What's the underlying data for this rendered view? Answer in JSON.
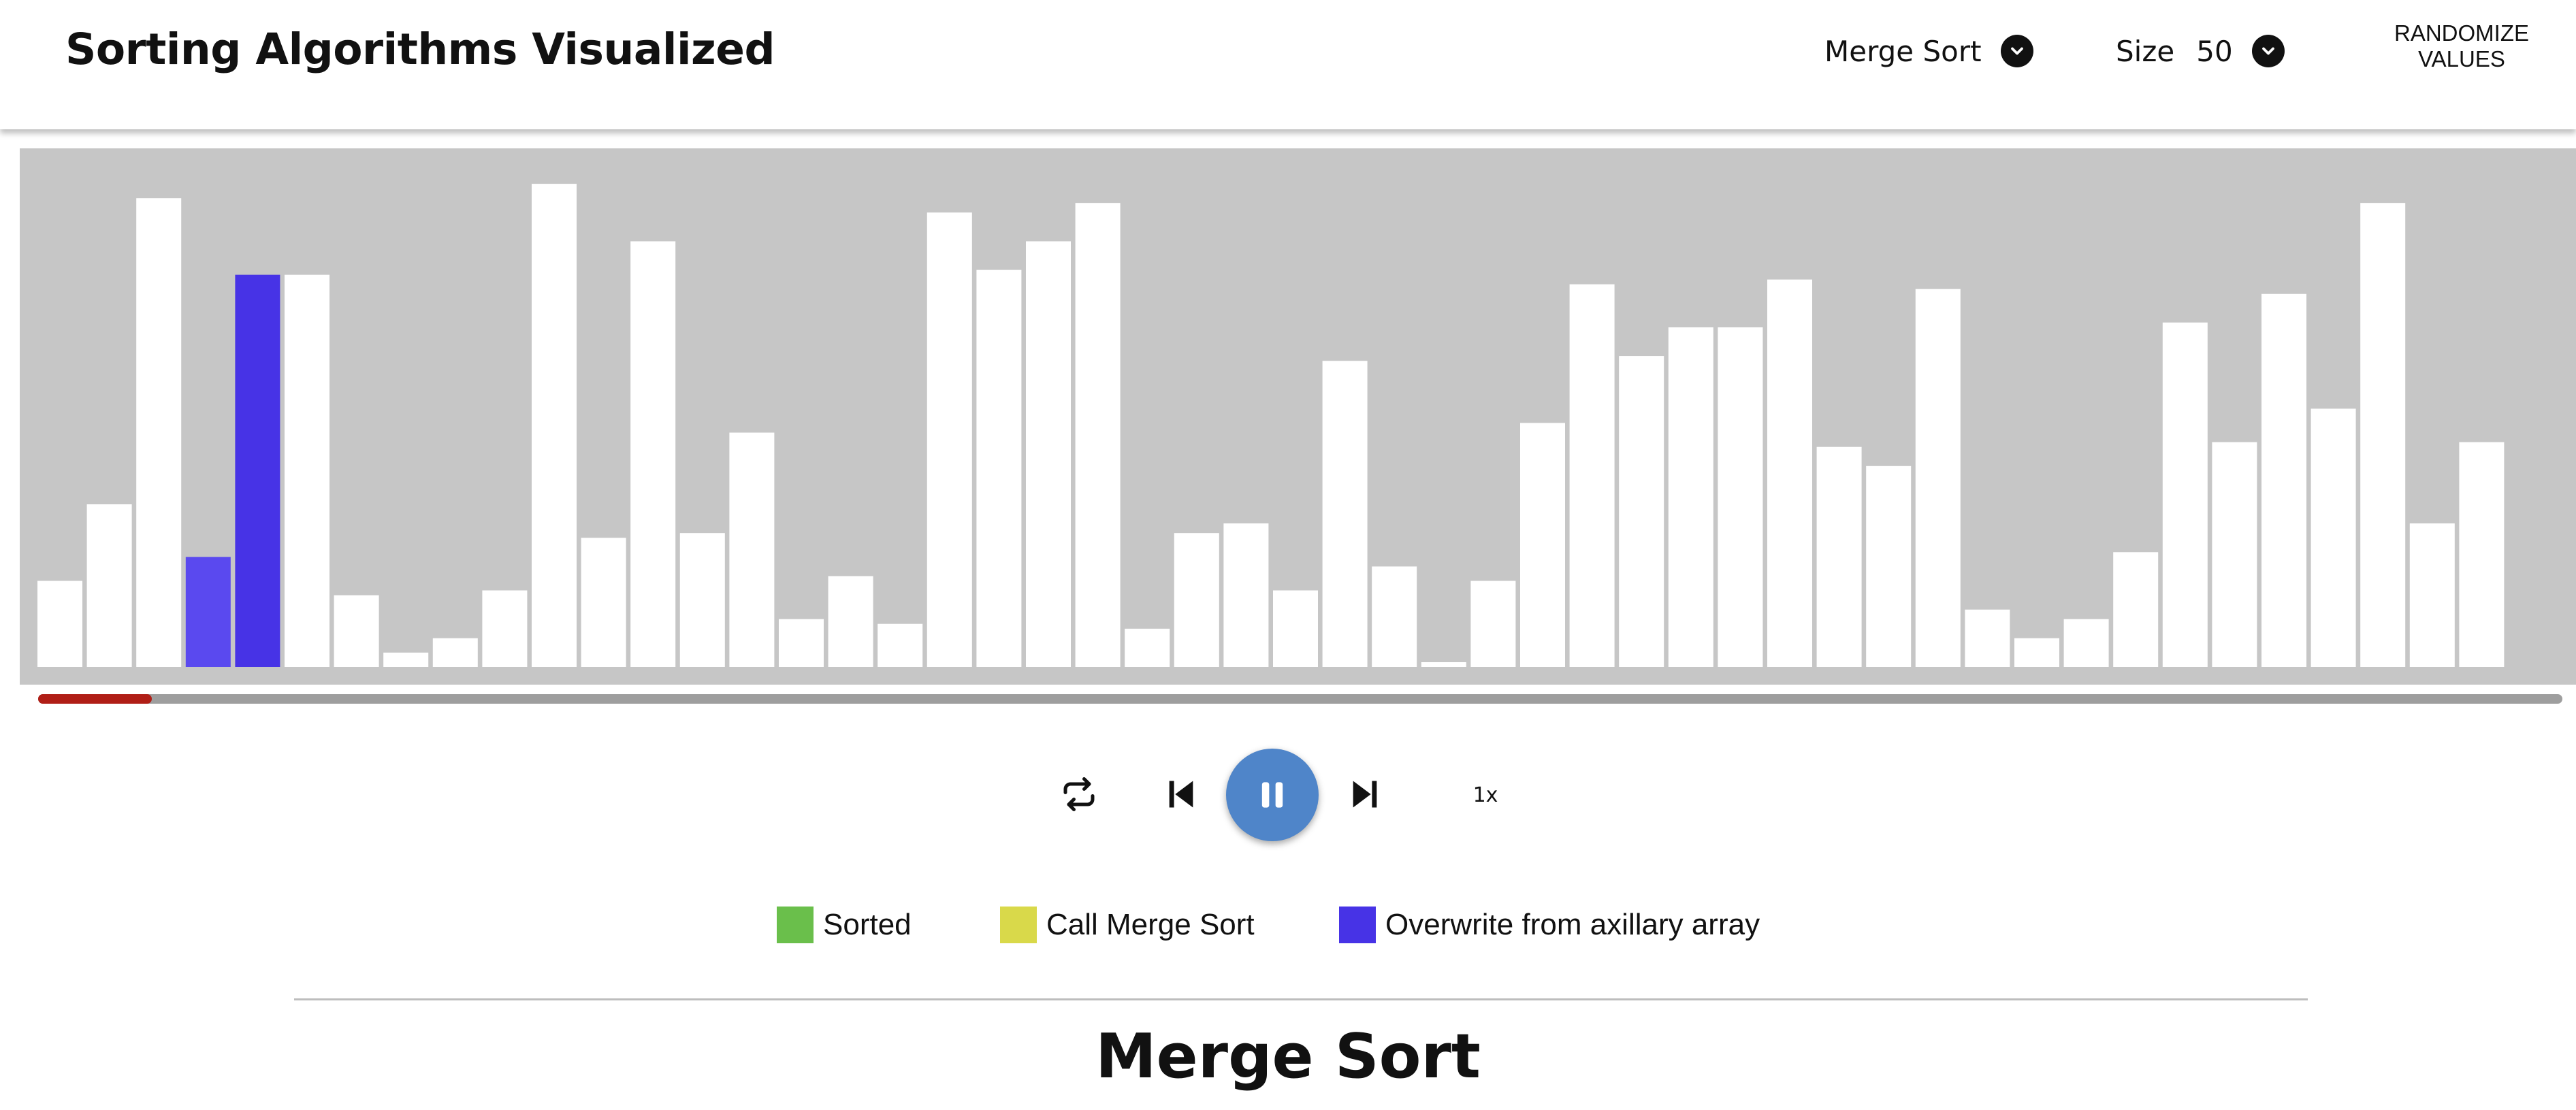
{
  "header": {
    "title": "Sorting Algorithms Visualized",
    "algorithm_select": {
      "value": "Merge Sort"
    },
    "size_select": {
      "label": "Size",
      "value": "50"
    },
    "randomize_label_line1": "RANDOMIZE",
    "randomize_label_line2": "VALUES"
  },
  "colors": {
    "chart_background": "#c6c6c6",
    "bar_default": "#ffffff",
    "bar_overwrite": "#4733e6",
    "bar_compare": "#5a49ef",
    "sorted": "#6abf4b",
    "call_merge_sort": "#d9d94a",
    "progress_fill": "#b01e16",
    "play_button": "#4f85c9"
  },
  "chart_data": {
    "type": "bar",
    "values": [
      18,
      34,
      98,
      23,
      82,
      82,
      15,
      3,
      6,
      16,
      101,
      27,
      89,
      28,
      49,
      10,
      19,
      9,
      95,
      83,
      89,
      97,
      8,
      28,
      30,
      16,
      64,
      21,
      1,
      18,
      51,
      80,
      65,
      71,
      71,
      81,
      46,
      42,
      79,
      12,
      6,
      10,
      24,
      72,
      47,
      78,
      54,
      97,
      30,
      47
    ],
    "highlight": [
      {
        "index": 3,
        "state": "compare"
      },
      {
        "index": 4,
        "state": "overwrite"
      }
    ],
    "ylim": [
      0,
      105
    ],
    "grid": false
  },
  "player": {
    "progress": 0.045,
    "speed_label": "1x",
    "state": "playing"
  },
  "legend": {
    "items": [
      {
        "label": "Sorted",
        "color": "#6abf4b"
      },
      {
        "label": "Call Merge Sort",
        "color": "#d9d94a"
      },
      {
        "label": "Overwrite from axillary array",
        "color": "#4733e6"
      }
    ]
  },
  "section": {
    "title": "Merge Sort"
  }
}
